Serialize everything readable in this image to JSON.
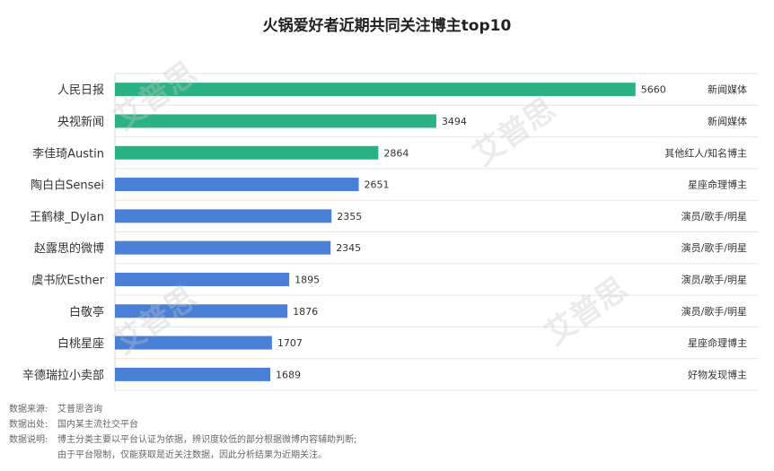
{
  "chart_data": {
    "type": "bar",
    "orientation": "horizontal",
    "title": "火锅爱好者近期共同关注博主top10",
    "categories": [
      "人民日报",
      "央视新闻",
      "李佳琦Austin",
      "陶白白Sensei",
      "王鹤棣_Dylan",
      "赵露思的微博",
      "虞书欣Esther",
      "白敬亭",
      "白桃星座",
      "辛德瑞拉小卖部"
    ],
    "values": [
      5660,
      3494,
      2864,
      2651,
      2355,
      2345,
      1895,
      1876,
      1707,
      1689
    ],
    "tags": [
      "新闻媒体",
      "新闻媒体",
      "其他红人/知名博主",
      "星座命理博主",
      "演员/歌手/明星",
      "演员/歌手/明星",
      "演员/歌手/明星",
      "演员/歌手/明星",
      "星座命理博主",
      "好物发现博主"
    ],
    "xlim": [
      0,
      7000
    ],
    "grid": "horizontal",
    "colors": {
      "green": "#2bb284",
      "blue": "#4a7fd8"
    },
    "bar_colors": [
      "green",
      "green",
      "green",
      "blue",
      "blue",
      "blue",
      "blue",
      "blue",
      "blue",
      "blue"
    ]
  },
  "footer": {
    "source_label": "数据来源:",
    "source_value": "艾普思咨询",
    "origin_label": "数据出处:",
    "origin_value": "国内某主流社交平台",
    "note_label": "数据说明:",
    "note_line1": "博主分类主要以平台认证为依据，辨识度较低的部分根据微博内容辅助判断;",
    "note_line2": "由于平台限制，仅能获取是近关注数据，因此分析结果为近期关注。"
  },
  "watermark": {
    "text": "艾普思"
  }
}
